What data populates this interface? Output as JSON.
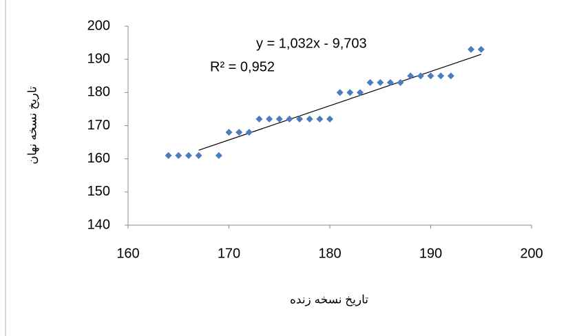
{
  "chart_data": {
    "type": "scatter",
    "x_label": "تاریخ نسخه زنده",
    "y_label": "تاریخ نسخه نهان",
    "annotations": [
      "y = 1,032x - 9,703",
      "R² = 0,952"
    ],
    "series": [
      {
        "color": "#4a7ebb",
        "x": [
          164,
          165,
          166,
          167,
          169,
          170,
          171,
          172,
          173,
          174,
          175,
          176,
          177,
          178,
          179,
          180,
          181,
          182,
          183,
          184,
          185,
          186,
          187,
          188,
          189,
          190,
          191,
          192,
          194,
          195
        ],
        "values": [
          161,
          161,
          161,
          161,
          161,
          168,
          168,
          168,
          172,
          172,
          172,
          172,
          172,
          172,
          172,
          172,
          180,
          180,
          180,
          183,
          183,
          183,
          183,
          185,
          185,
          185,
          185,
          185,
          193,
          193
        ]
      }
    ],
    "trendline": {
      "color": "#000000",
      "x": [
        167,
        195
      ],
      "values": [
        162.6,
        191.5
      ]
    },
    "xlim": [
      160,
      200
    ],
    "xticks": [
      160,
      170,
      180,
      190,
      200
    ],
    "ylim": [
      140,
      200
    ],
    "yticks": [
      140,
      150,
      160,
      170,
      180,
      190,
      200
    ],
    "grid": false
  }
}
